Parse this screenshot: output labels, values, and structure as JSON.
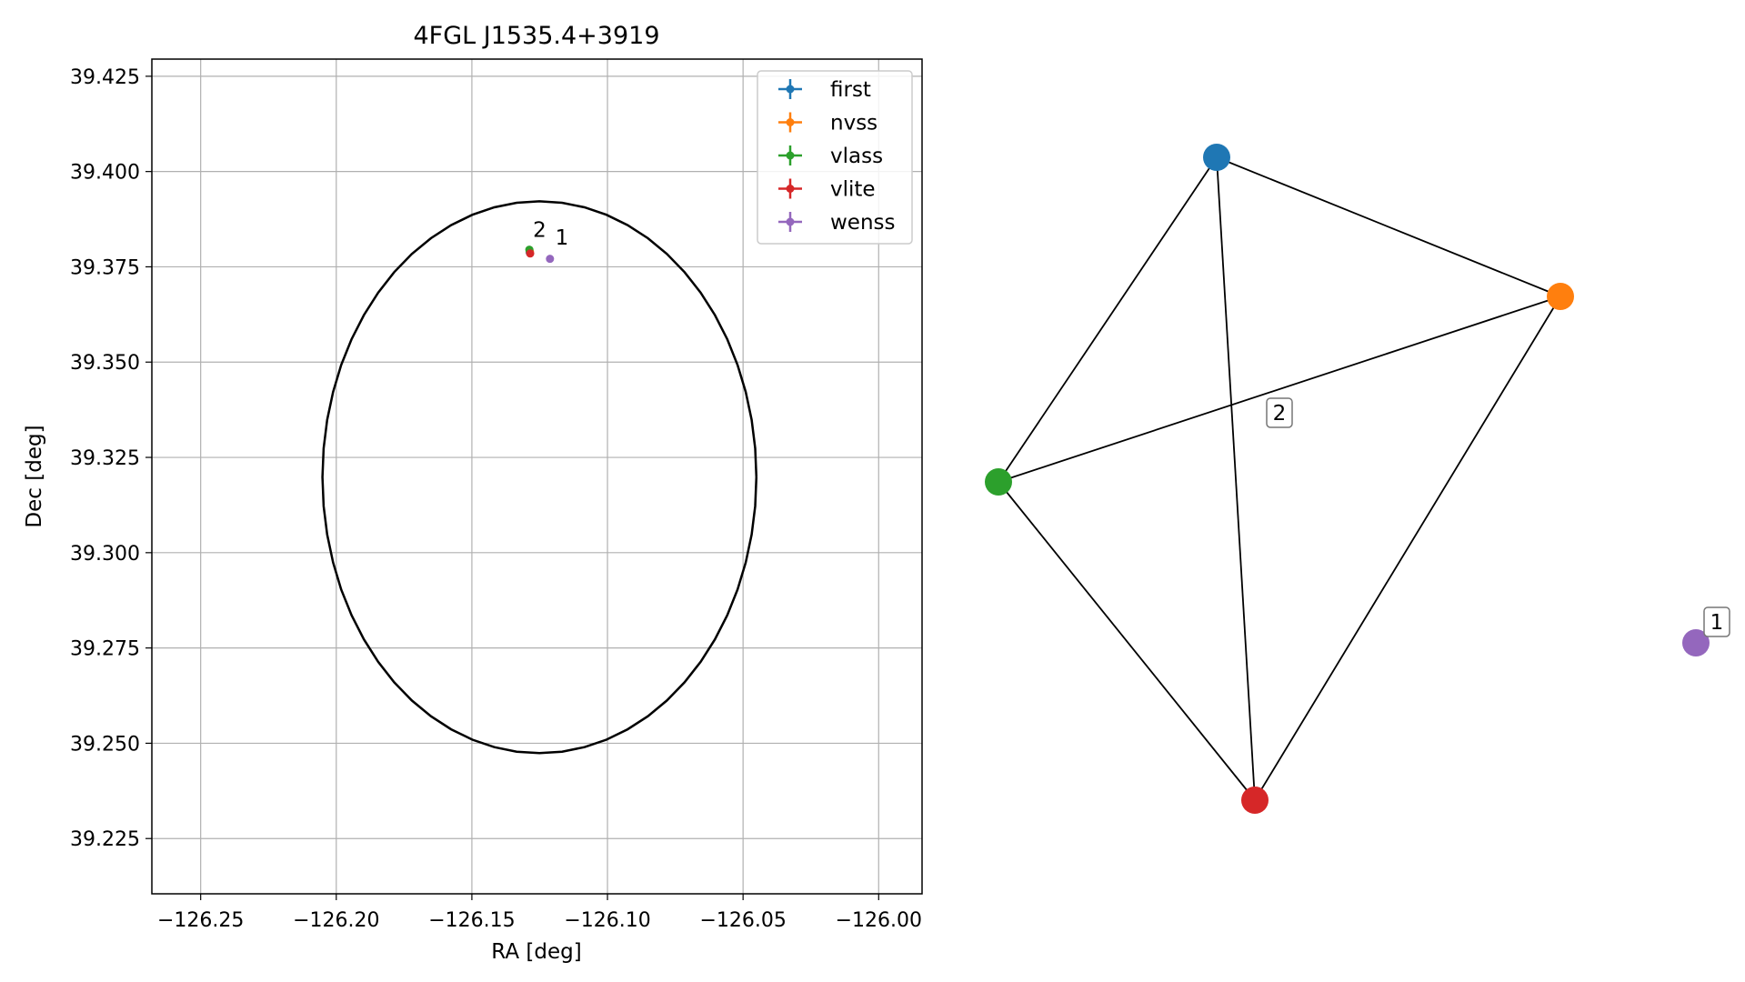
{
  "chart_data": [
    {
      "type": "scatter",
      "title": "4FGL J1535.4+3919",
      "xlabel": "RA [deg]",
      "ylabel": "Dec [deg]",
      "xlim": [
        -126.268,
        -125.984
      ],
      "ylim": [
        39.2105,
        39.4295
      ],
      "xticks": [
        -126.25,
        -126.2,
        -126.15,
        -126.1,
        -126.05,
        -126.0
      ],
      "xtick_labels": [
        "−126.25",
        "−126.20",
        "−126.15",
        "−126.10",
        "−126.05",
        "−126.00"
      ],
      "yticks": [
        39.225,
        39.25,
        39.275,
        39.3,
        39.325,
        39.35,
        39.375,
        39.4,
        39.425
      ],
      "ytick_labels": [
        "39.225",
        "39.250",
        "39.275",
        "39.300",
        "39.325",
        "39.350",
        "39.375",
        "39.400",
        "39.425"
      ],
      "grid": true,
      "legend_position": "top-right",
      "series": [
        {
          "name": "first",
          "color": "#1f77b4",
          "points": [
            [
              -126.1287,
              39.3788
            ]
          ]
        },
        {
          "name": "nvss",
          "color": "#ff7f0e",
          "points": [
            [
              -126.1286,
              39.379
            ]
          ]
        },
        {
          "name": "vlass",
          "color": "#2ca02c",
          "points": [
            [
              -126.1288,
              39.3795
            ]
          ]
        },
        {
          "name": "vlite",
          "color": "#d62728",
          "points": [
            [
              -126.1285,
              39.3785
            ]
          ]
        },
        {
          "name": "wenss",
          "color": "#9467bd",
          "points": [
            [
              -126.1212,
              39.3771
            ]
          ]
        }
      ],
      "point_labels": [
        {
          "text": "2",
          "x": -126.125,
          "y": 39.3829
        },
        {
          "text": "1",
          "x": -126.1168,
          "y": 39.3808
        }
      ],
      "ellipse": {
        "center_ra": -126.1251,
        "center_dec": 39.3198,
        "semi_axis_ra": 0.08,
        "semi_axis_dec": 0.0724,
        "color": "#000000"
      }
    },
    {
      "type": "network",
      "nodes": [
        {
          "id": "first",
          "color": "#1f77b4"
        },
        {
          "id": "nvss",
          "color": "#ff7f0e"
        },
        {
          "id": "vlass",
          "color": "#2ca02c"
        },
        {
          "id": "vlite",
          "color": "#d62728"
        },
        {
          "id": "wenss",
          "color": "#9467bd"
        }
      ],
      "edges": [
        [
          "first",
          "nvss"
        ],
        [
          "first",
          "vlass"
        ],
        [
          "first",
          "vlite"
        ],
        [
          "nvss",
          "vlass"
        ],
        [
          "nvss",
          "vlite"
        ],
        [
          "vlass",
          "vlite"
        ]
      ],
      "group_labels": [
        "2",
        "1"
      ]
    }
  ]
}
